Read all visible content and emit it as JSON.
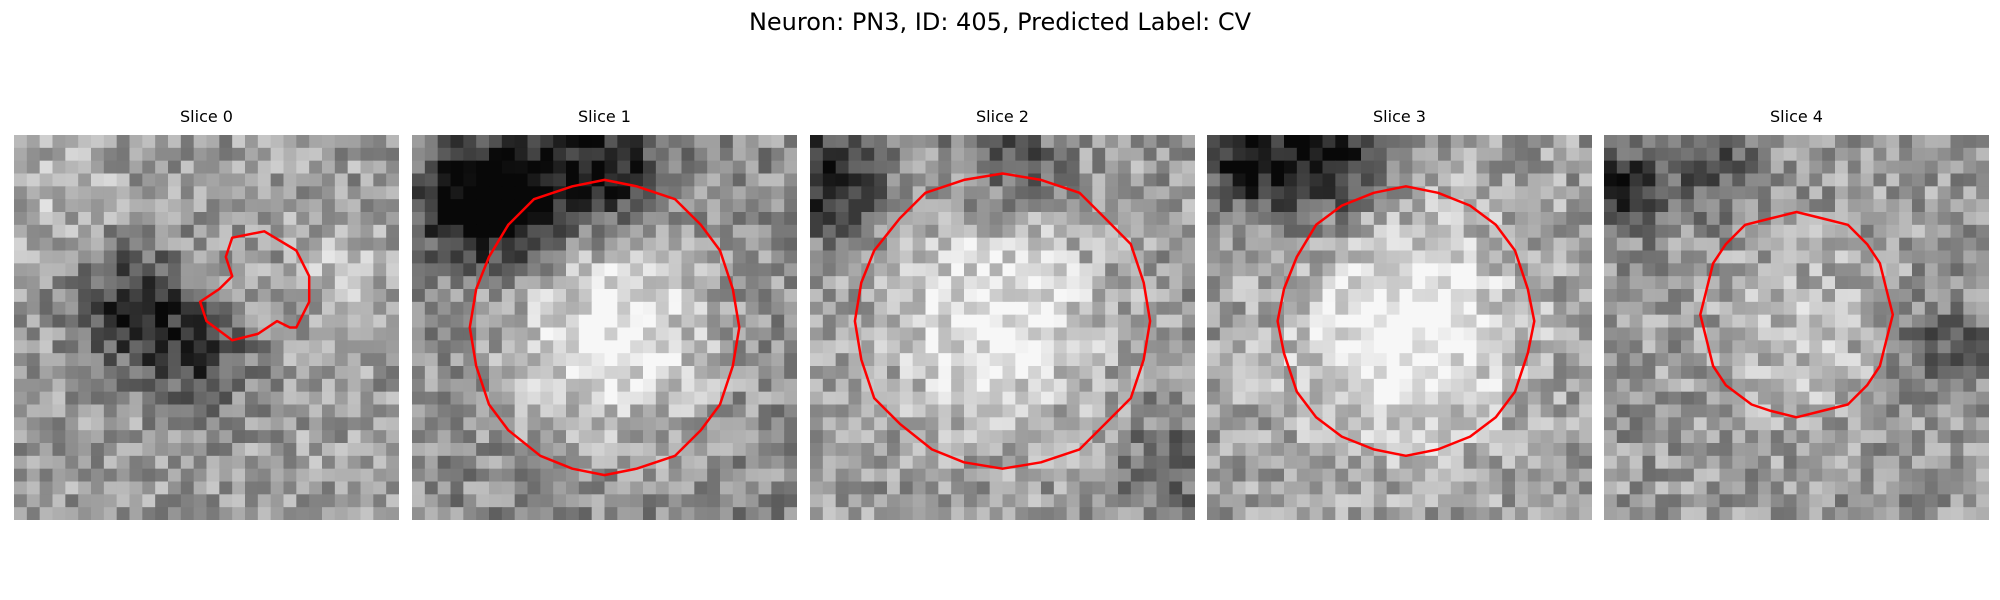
{
  "figure": {
    "suptitle": "Neuron: PN3, ID: 405, Predicted Label: CV"
  },
  "colors": {
    "contour": "#ff0000",
    "colormap": "gray"
  },
  "panels": [
    {
      "title": "Slice 0",
      "image_description": "noisy grayscale crop; dark blob lower-left; small irregular region outlined",
      "contour_kind": "small-irregular"
    },
    {
      "title": "Slice 1",
      "image_description": "bright round soma with dark band along top edge",
      "contour_kind": "large-circular"
    },
    {
      "title": "Slice 2",
      "image_description": "bright round soma, dark upper-left corner",
      "contour_kind": "large-circular"
    },
    {
      "title": "Slice 3",
      "image_description": "very bright soma with dark band top-left",
      "contour_kind": "large-circular"
    },
    {
      "title": "Slice 4",
      "image_description": "mottled gray soma, dark spot upper-left",
      "contour_kind": "medium-circular"
    }
  ]
}
